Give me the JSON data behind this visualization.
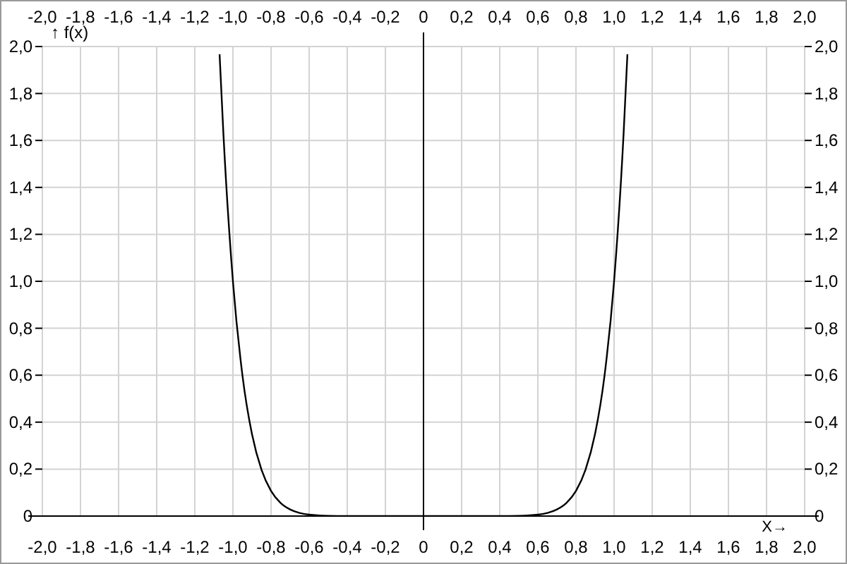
{
  "chart_data": {
    "type": "line",
    "xlabel": "X→",
    "ylabel": "↑ f(x)",
    "series": [
      {
        "color": "#000000",
        "x": [
          -1.07,
          -1.05,
          -1.0,
          -0.95,
          -0.9,
          -0.85,
          -0.8,
          -0.75,
          -0.7,
          -0.65,
          -0.6,
          -0.5,
          -0.4,
          0,
          0.4,
          0.5,
          0.6,
          0.65,
          0.7,
          0.75,
          0.8,
          0.85,
          0.9,
          0.95,
          1.0,
          1.05,
          1.07
        ],
        "values": [
          1.967,
          1.629,
          1,
          0.599,
          0.349,
          0.197,
          0.107,
          0.056,
          0.028,
          0.013,
          0.006,
          0.001,
          0,
          0,
          0,
          0.001,
          0.006,
          0.013,
          0.028,
          0.056,
          0.107,
          0.197,
          0.349,
          0.599,
          1,
          1.629,
          1.967
        ]
      }
    ],
    "xlim": [
      -2,
      2
    ],
    "ylim": [
      0,
      2
    ],
    "x2lim": [
      -2,
      2
    ],
    "y2lim": [
      0,
      2
    ],
    "xticks": [
      {
        "value": -2,
        "label": "-2,0"
      },
      {
        "value": -1.8,
        "label": "-1,8"
      },
      {
        "value": -1.6,
        "label": "-1,6"
      },
      {
        "value": -1.4,
        "label": "-1,4"
      },
      {
        "value": -1.2,
        "label": "-1,2"
      },
      {
        "value": -1,
        "label": "-1,0"
      },
      {
        "value": -0.8,
        "label": "-0,8"
      },
      {
        "value": -0.6,
        "label": "-0,6"
      },
      {
        "value": -0.4,
        "label": "-0,4"
      },
      {
        "value": -0.2,
        "label": "-0,2"
      },
      0,
      {
        "value": 0.2,
        "label": "0,2"
      },
      {
        "value": 0.4,
        "label": "0,4"
      },
      {
        "value": 0.6,
        "label": "0,6"
      },
      {
        "value": 0.8,
        "label": "0,8"
      },
      {
        "value": 1,
        "label": "1,0"
      },
      {
        "value": 1.2,
        "label": "1,2"
      },
      {
        "value": 1.4,
        "label": "1,4"
      },
      {
        "value": 1.6,
        "label": "1,6"
      },
      {
        "value": 1.8,
        "label": "1,8"
      },
      {
        "value": 2,
        "label": "2,0"
      }
    ],
    "x2ticks": [
      {
        "value": -2,
        "label": "-2,0"
      },
      {
        "value": -1.8,
        "label": "-1,8"
      },
      {
        "value": -1.6,
        "label": "-1,6"
      },
      {
        "value": -1.4,
        "label": "-1,4"
      },
      {
        "value": -1.2,
        "label": "-1,2"
      },
      {
        "value": -1,
        "label": "-1,0"
      },
      {
        "value": -0.8,
        "label": "-0,8"
      },
      {
        "value": -0.6,
        "label": "-0,6"
      },
      {
        "value": -0.4,
        "label": "-0,4"
      },
      {
        "value": -0.2,
        "label": "-0,2"
      },
      0,
      {
        "value": 0.2,
        "label": "0,2"
      },
      {
        "value": 0.4,
        "label": "0,4"
      },
      {
        "value": 0.6,
        "label": "0,6"
      },
      {
        "value": 0.8,
        "label": "0,8"
      },
      {
        "value": 1,
        "label": "1,0"
      },
      {
        "value": 1.2,
        "label": "1,2"
      },
      {
        "value": 1.4,
        "label": "1,4"
      },
      {
        "value": 1.6,
        "label": "1,6"
      },
      {
        "value": 1.8,
        "label": "1,8"
      },
      {
        "value": 2,
        "label": "2,0"
      }
    ],
    "yticks": [
      0,
      {
        "value": 0.2,
        "label": "0,2"
      },
      {
        "value": 0.4,
        "label": "0,4"
      },
      {
        "value": 0.6,
        "label": "0,6"
      },
      {
        "value": 0.8,
        "label": "0,8"
      },
      {
        "value": 1,
        "label": "1,0"
      },
      {
        "value": 1.2,
        "label": "1,2"
      },
      {
        "value": 1.4,
        "label": "1,4"
      },
      {
        "value": 1.6,
        "label": "1,6"
      },
      {
        "value": 1.8,
        "label": "1,8"
      },
      {
        "value": 2,
        "label": "2,0"
      }
    ],
    "y2ticks": [
      0,
      {
        "value": 0.2,
        "label": "0,2"
      },
      {
        "value": 0.4,
        "label": "0,4"
      },
      {
        "value": 0.6,
        "label": "0,6"
      },
      {
        "value": 0.8,
        "label": "0,8"
      },
      {
        "value": 1,
        "label": "1,0"
      },
      {
        "value": 1.2,
        "label": "1,2"
      },
      {
        "value": 1.4,
        "label": "1,4"
      },
      {
        "value": 1.6,
        "label": "1,6"
      },
      {
        "value": 1.8,
        "label": "1,8"
      },
      {
        "value": 2,
        "label": "2,0"
      }
    ],
    "grid": true,
    "marker": "none",
    "line_style": "solid"
  }
}
